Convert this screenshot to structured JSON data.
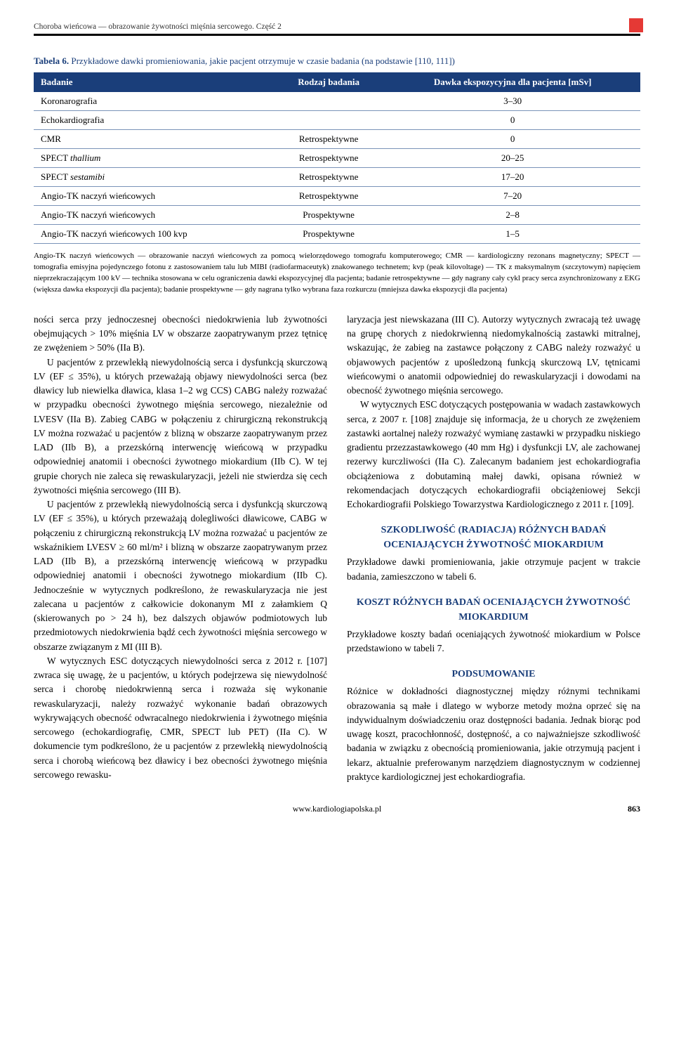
{
  "running_head": "Choroba wieńcowa — obrazowanie żywotności mięśnia sercowego. Część 2",
  "table6": {
    "label": "Tabela 6.",
    "caption": " Przykładowe dawki promieniowania, jakie pacjent otrzymuje w czasie badania (na podstawie [110, 111])",
    "headers": [
      "Badanie",
      "Rodzaj badania",
      "Dawka ekspozycyjna dla pacjenta [mSv]"
    ],
    "rows": [
      [
        "Koronarografia",
        "",
        "3–30"
      ],
      [
        "Echokardiografia",
        "",
        "0"
      ],
      [
        "CMR",
        "Retrospektywne",
        "0"
      ],
      [
        "SPECT thallium",
        "Retrospektywne",
        "20–25"
      ],
      [
        "SPECT sestamibi",
        "Retrospektywne",
        "17–20"
      ],
      [
        "Angio-TK naczyń wieńcowych",
        "Retrospektywne",
        "7–20"
      ],
      [
        "Angio-TK naczyń wieńcowych",
        "Prospektywne",
        "2–8"
      ],
      [
        "Angio-TK naczyń wieńcowych 100 kvp",
        "Prospektywne",
        "1–5"
      ]
    ],
    "footnote": "Angio-TK naczyń wieńcowych — obrazowanie naczyń wieńcowych za pomocą wielorzędowego tomografu komputerowego; CMR — kardiologiczny rezonans magnetyczny; SPECT — tomografia emisyjna pojedynczego fotonu z zastosowaniem talu lub MIBI (radiofarmaceutyk) znakowanego technetem; kvp (peak kilovoltage) — TK z maksymalnym (szczytowym) napięciem nieprzekraczającym 100 kV — technika stosowana w celu ograniczenia dawki ekspozycyjnej dla pacjenta; badanie retrospektywne — gdy nagrany cały cykl pracy serca zsynchronizowany z EKG (większa dawka ekspozycji dla pacjenta); badanie prospektywne — gdy nagrana tylko wybrana faza rozkurczu (mniejsza dawka ekspozycji dla pacjenta)"
  },
  "left": {
    "p1a": "ności serca przy jednoczesnej obecności niedokrwienia lub żywotności obejmujących > 10% mięśnia LV w obszarze zaopatrywanym przez tętnicę ze zwężeniem > 50% (IIa B).",
    "p1b": "U pacjentów z przewlekłą niewydolnością serca i dysfunkcją skurczową LV (EF ≤ 35%), u których przeważają objawy niewydolności serca (bez dławicy lub niewielka dławica, klasa 1–2 wg CCS) CABG należy rozważać w przypadku obecności żywotnego mięśnia sercowego, niezależnie od LVESV (IIa B). Zabieg CABG w połączeniu z chirurgiczną rekonstrukcją LV można rozważać u pacjentów z blizną w obszarze zaopatrywanym przez LAD (IIb B), a przezskórną interwencję wieńcową w przypadku odpowiedniej anatomii i obecności żywotnego miokardium (IIb C). W tej grupie chorych nie zaleca się rewaskularyzacji, jeżeli nie stwierdza się cech żywotności mięśnia sercowego (III B).",
    "p2": "U pacjentów z przewlekłą niewydolnością serca i dysfunkcją skurczową LV (EF ≤ 35%), u których przeważają dolegliwości dławicowe, CABG w połączeniu z chirurgiczną rekonstrukcją LV można rozważać u pacjentów ze wskaźnikiem LVESV ≥ 60 ml/m² i blizną w obszarze zaopatrywanym przez LAD (IIb B), a przezskórną interwencję wieńcową w przypadku odpowiedniej anatomii i obecności żywotnego miokardium (IIb C). Jednocześnie w wytycznych podkreślono, że rewaskularyzacja nie jest zalecana u pacjentów z całkowicie dokonanym MI z załamkiem Q (skierowanych po > 24 h), bez dalszych objawów podmiotowych lub przedmiotowych niedokrwienia bądź cech żywotności mięśnia sercowego w obszarze związanym z MI (III B).",
    "p3": "W wytycznych ESC dotyczących niewydolności serca z 2012 r. [107] zwraca się uwagę, że u pacjentów, u których podejrzewa się niewydolność serca i chorobę niedokrwienną serca i rozważa się wykonanie rewaskularyzacji, należy rozważyć wykonanie badań obrazowych wykrywających obecność odwracalnego niedokrwienia i żywotnego mięśnia sercowego (echokardiografię, CMR, SPECT lub PET) (IIa C). W dokumencie tym podkreślono, że u pacjentów z przewlekłą niewydolnością serca i chorobą wieńcową bez dławicy i bez obecności żywotnego mięśnia sercowego rewasku-"
  },
  "right": {
    "p1": "laryzacja jest niewskazana (III C). Autorzy wytycznych zwracają też uwagę na grupę chorych z niedokrwienną niedomykalnością zastawki mitralnej, wskazując, że zabieg na zastawce połączony z CABG należy rozważyć u objawowych pacjentów z upośledzoną funkcją skurczową LV, tętnicami wieńcowymi o anatomii odpowiedniej do rewaskularyzacji i dowodami na obecność żywotnego mięśnia sercowego.",
    "p2": "W wytycznych ESC dotyczących postępowania w wadach zastawkowych serca, z 2007 r. [108] znajduje się informacja, że u chorych ze zwężeniem zastawki aortalnej należy rozważyć wymianę zastawki w przypadku niskiego gradientu przezzastawkowego (40 mm Hg) i dysfunkcji LV, ale zachowanej rezerwy kurczliwości (IIa C). Zalecanym badaniem jest echokardiografia obciążeniowa z dobutaminą małej dawki, opisana również w rekomendacjach dotyczących echokardiografii obciążeniowej Sekcji Echokardiografii Polskiego Towarzystwa Kardiologicznego z 2011 r. [109].",
    "sec1_head": "SZKODLIWOŚĆ (RADIACJA) RÓŻNYCH BADAŃ OCENIAJĄCYCH ŻYWOTNOŚĆ MIOKARDIUM",
    "sec1_body": "Przykładowe dawki promieniowania, jakie otrzymuje pacjent w trakcie badania, zamieszczono w tabeli 6.",
    "sec2_head": "KOSZT RÓŻNYCH BADAŃ OCENIAJĄCYCH ŻYWOTNOŚĆ MIOKARDIUM",
    "sec2_body": "Przykładowe koszty badań oceniających żywotność miokardium w Polsce przedstawiono w tabeli 7.",
    "sec3_head": "PODSUMOWANIE",
    "sec3_body": "Różnice w dokładności diagnostycznej między różnymi technikami obrazowania są małe i dlatego w wyborze metody można oprzeć się na indywidualnym doświadczeniu oraz dostępności badania. Jednak biorąc pod uwagę koszt, pracochłonność, dostępność, a co najważniejsze szkodliwość badania w związku z obecnością promieniowania, jakie otrzymują pacjent i lekarz, aktualnie preferowanym narzędziem diagnostycznym w codziennej praktyce kardiologicznej jest echokardiografia."
  },
  "footer": {
    "site": "www.kardiologiapolska.pl",
    "page": "863"
  },
  "colors": {
    "header_bg": "#1a3e7a",
    "accent": "#e53935",
    "row_border": "#7a93b8"
  }
}
